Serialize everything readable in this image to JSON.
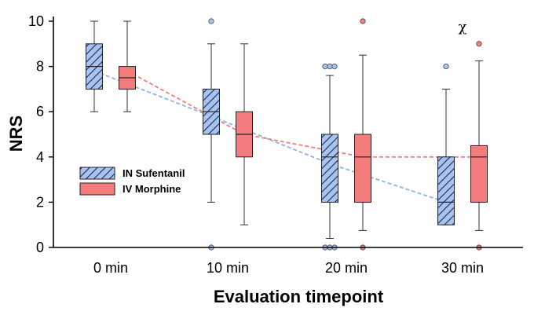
{
  "chart_data": {
    "type": "box",
    "title": "",
    "xlabel": "Evaluation timepoint",
    "ylabel": "NRS",
    "ylim": [
      0,
      10
    ],
    "yticks": [
      0,
      2,
      4,
      6,
      8,
      10
    ],
    "categories": [
      "0 min",
      "10 min",
      "20 min",
      "30 min"
    ],
    "legend": {
      "placement": "center-left"
    },
    "series": [
      {
        "name": "IN Sufentanil",
        "color": "#a8c4ee",
        "hatch": "diagonal",
        "trend_color": "#8fb3e8",
        "boxes": [
          {
            "whisker_low": 6,
            "q1": 7,
            "median": 8,
            "q3": 9,
            "whisker_high": 10,
            "outliers": []
          },
          {
            "whisker_low": 2,
            "q1": 5,
            "median": 6,
            "q3": 7,
            "whisker_high": 9,
            "outliers": [
              10,
              0
            ]
          },
          {
            "whisker_low": 0.4,
            "q1": 2,
            "median": 4,
            "q3": 5,
            "whisker_high": 7.6,
            "outliers": [
              8,
              8,
              8,
              0,
              0,
              0
            ]
          },
          {
            "whisker_low": 1,
            "q1": 1,
            "median": 2,
            "q3": 4,
            "whisker_high": 7,
            "outliers": [
              8
            ]
          }
        ],
        "trend": [
          7.8,
          5.8,
          3.7,
          2
        ]
      },
      {
        "name": "IV Morphine",
        "color": "#f47c7c",
        "hatch": "none",
        "trend_color": "#f47c7c",
        "boxes": [
          {
            "whisker_low": 6,
            "q1": 7,
            "median": 7.5,
            "q3": 8,
            "whisker_high": 10,
            "outliers": []
          },
          {
            "whisker_low": 1,
            "q1": 4,
            "median": 5,
            "q3": 6,
            "whisker_high": 9,
            "outliers": []
          },
          {
            "whisker_low": 0.75,
            "q1": 2,
            "median": 4,
            "q3": 5,
            "whisker_high": 8.5,
            "outliers": [
              10,
              0
            ]
          },
          {
            "whisker_low": 0.75,
            "q1": 2,
            "median": 4,
            "q3": 4.5,
            "whisker_high": 8.25,
            "outliers": [
              9,
              0
            ]
          }
        ],
        "trend": [
          7.8,
          5,
          4,
          4
        ]
      }
    ],
    "annotations": [
      {
        "text": "χ",
        "category": "30 min",
        "y": 10
      }
    ]
  }
}
